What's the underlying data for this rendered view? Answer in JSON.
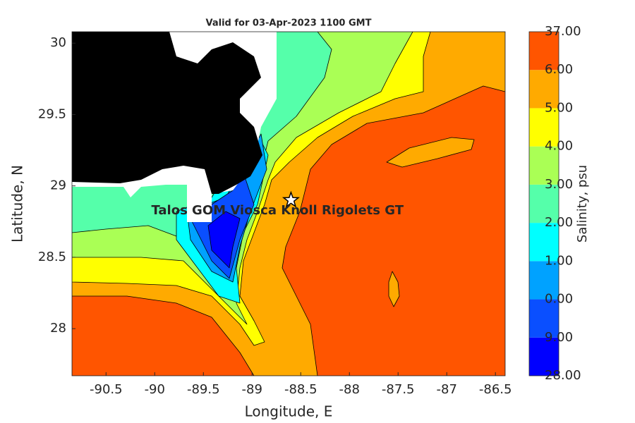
{
  "chart_data": {
    "type": "contour",
    "title": "Valid for 03-Apr-2023 1100 GMT",
    "xlabel": "Longitude, E",
    "ylabel": "Latitude, N",
    "xlim": [
      -90.85,
      -86.4
    ],
    "ylim": [
      27.67,
      30.08
    ],
    "xticks": [
      -90.5,
      -90,
      -89.5,
      -89,
      -88.5,
      -88,
      -87.5,
      -87,
      -86.5
    ],
    "yticks": [
      28,
      28.5,
      29,
      29.5,
      30
    ],
    "colorbar_label": "Salinity, psu",
    "colorbar_labels": [
      "28.00",
      "9.00",
      "0.00",
      "1.00",
      "2.00",
      "3.00",
      "4.00",
      "5.00",
      "6.00",
      "37.00"
    ],
    "colors": [
      "#0000ff",
      "#0a4fff",
      "#00a2ff",
      "#00ffff",
      "#55ffaa",
      "#aaff55",
      "#ffff00",
      "#ffaa00",
      "#ff5500"
    ],
    "land_color": "#000000",
    "marker": {
      "label": "Talos GOM Viosca Knoll Rigolets GT",
      "x": -88.6,
      "y": 28.9
    }
  }
}
